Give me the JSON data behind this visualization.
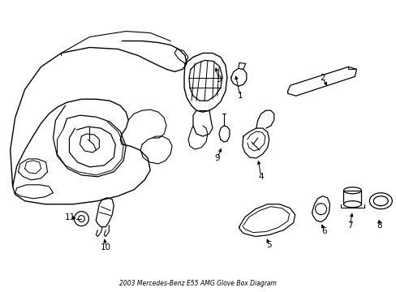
{
  "title": "2003 Mercedes-Benz E55 AMG Glove Box Diagram",
  "background_color": "#ffffff",
  "line_color": "#000000",
  "label_color": "#000000",
  "figsize": [
    4.89,
    3.6
  ],
  "dpi": 100
}
